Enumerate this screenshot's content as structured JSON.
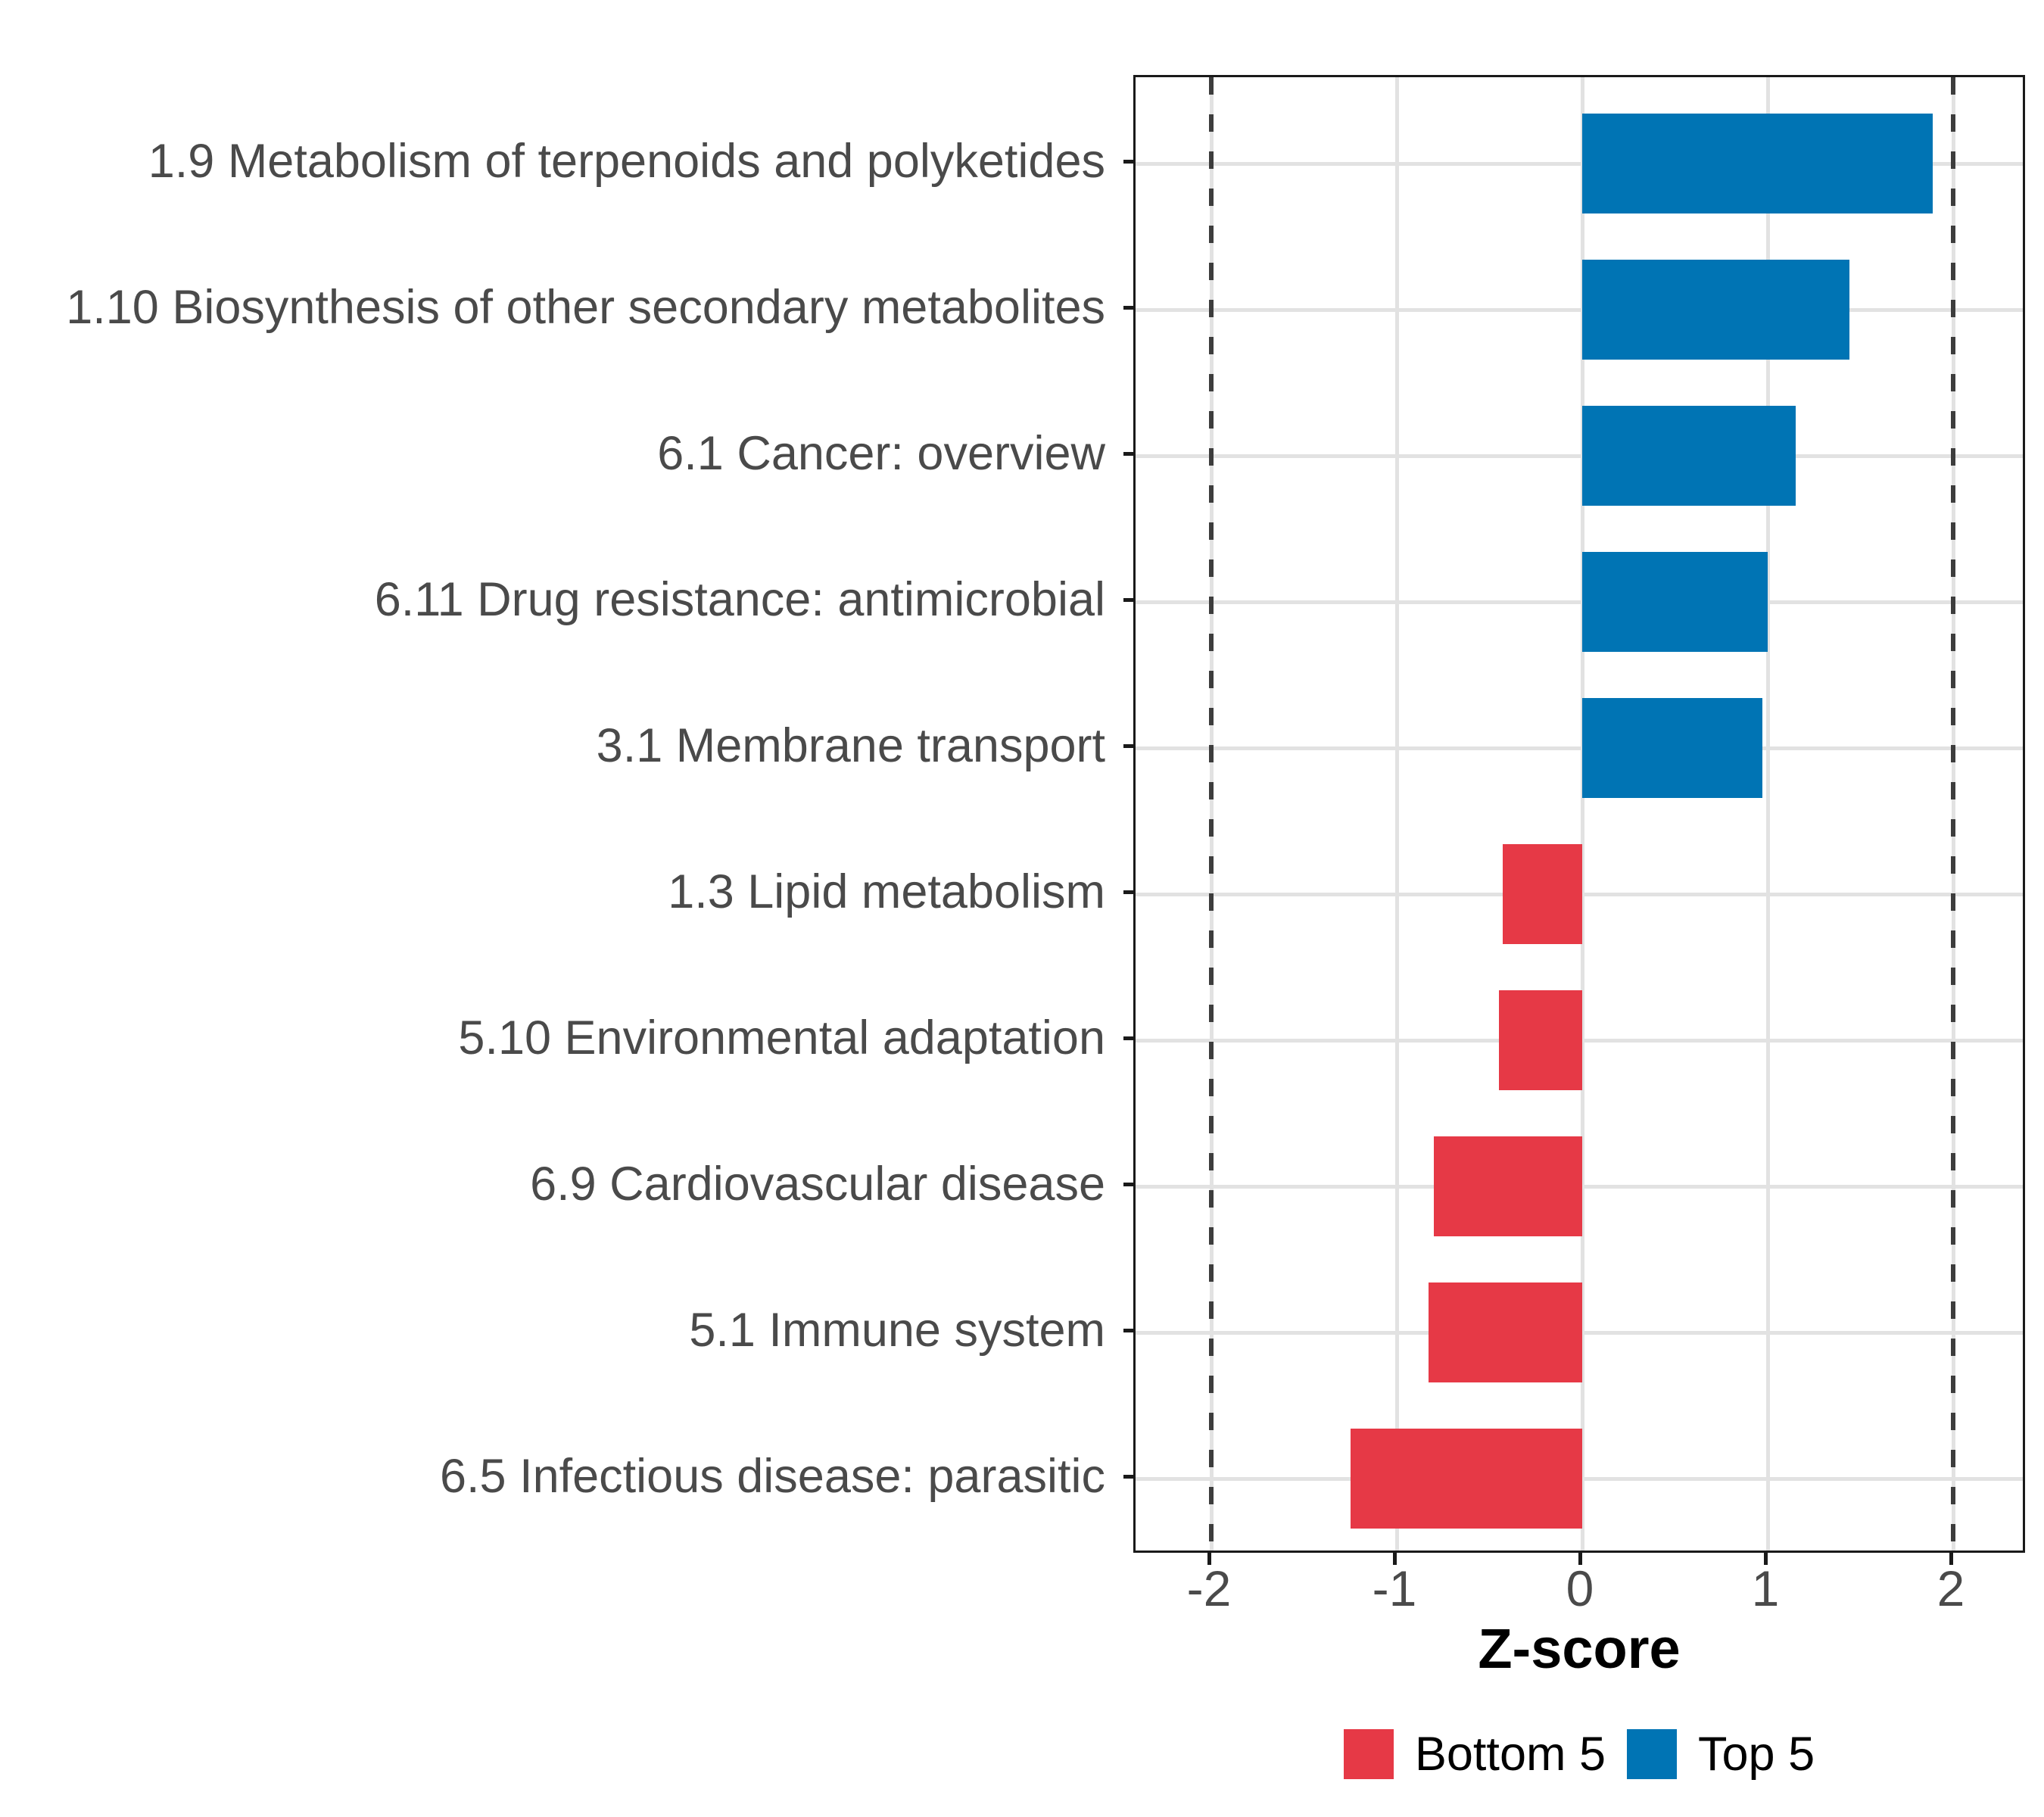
{
  "chart_data": {
    "type": "bar",
    "orientation": "horizontal",
    "title": "",
    "xlabel": "Z-score",
    "ylabel": "",
    "categories": [
      "1.9 Metabolism of terpenoids and polyketides",
      "1.10 Biosynthesis of other secondary metabolites",
      "6.1 Cancer: overview",
      "6.11 Drug resistance: antimicrobial",
      "3.1 Membrane transport",
      "1.3 Lipid metabolism",
      "5.10 Environmental adaptation",
      "6.9 Cardiovascular disease",
      "5.1 Immune system",
      "6.5 Infectious disease: parasitic"
    ],
    "values": [
      1.89,
      1.44,
      1.15,
      1.0,
      0.97,
      -0.43,
      -0.45,
      -0.8,
      -0.83,
      -1.25
    ],
    "groups": [
      "Top 5",
      "Top 5",
      "Top 5",
      "Top 5",
      "Top 5",
      "Bottom 5",
      "Bottom 5",
      "Bottom 5",
      "Bottom 5",
      "Bottom 5"
    ],
    "group_colors": {
      "Top 5": "#0074B4",
      "Bottom 5": "#E63946"
    },
    "x_ticks": [
      -2,
      -1,
      0,
      1,
      2
    ],
    "x_tick_labels": [
      "-2",
      "-1",
      "0",
      "1",
      "2"
    ],
    "xlim": [
      -2.41,
      2.41
    ],
    "reference_lines": [
      -2,
      2
    ],
    "grid": true,
    "legend_position": "bottom"
  },
  "axis": {
    "x_title": "Z-score"
  },
  "legend": {
    "bottom5": "Bottom 5",
    "top5": "Top 5"
  },
  "style_colors": {
    "gridline": "#e2e2e2",
    "reference_dash": "#3d3d3d",
    "panel_border": "#1a1a1a",
    "axis_text": "#4a4a4a"
  }
}
